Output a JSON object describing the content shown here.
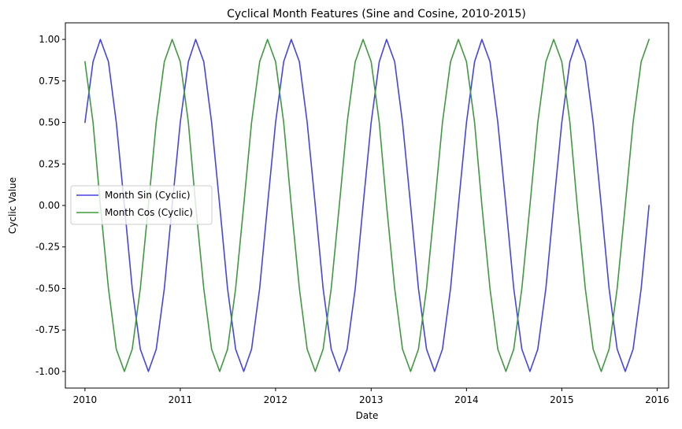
{
  "chart_data": {
    "type": "line",
    "title": "Cyclical Month Features (Sine and Cosine, 2010-2015)",
    "xlabel": "Date",
    "ylabel": "Cyclic Value",
    "x_ticks": [
      "2010",
      "2011",
      "2012",
      "2013",
      "2014",
      "2015",
      "2016"
    ],
    "y_ticks": [
      "1.00",
      "0.75",
      "0.50",
      "0.25",
      "0.00",
      "-0.25",
      "-0.50",
      "-0.75",
      "-1.00"
    ],
    "xlim": [
      "2009-10-18",
      "2016-02-14"
    ],
    "ylim": [
      -1.1,
      1.1
    ],
    "grid": false,
    "legend_position": "center-left",
    "x": [
      "2010-01",
      "2010-02",
      "2010-03",
      "2010-04",
      "2010-05",
      "2010-06",
      "2010-07",
      "2010-08",
      "2010-09",
      "2010-10",
      "2010-11",
      "2010-12",
      "2011-01",
      "2011-02",
      "2011-03",
      "2011-04",
      "2011-05",
      "2011-06",
      "2011-07",
      "2011-08",
      "2011-09",
      "2011-10",
      "2011-11",
      "2011-12",
      "2012-01",
      "2012-02",
      "2012-03",
      "2012-04",
      "2012-05",
      "2012-06",
      "2012-07",
      "2012-08",
      "2012-09",
      "2012-10",
      "2012-11",
      "2012-12",
      "2013-01",
      "2013-02",
      "2013-03",
      "2013-04",
      "2013-05",
      "2013-06",
      "2013-07",
      "2013-08",
      "2013-09",
      "2013-10",
      "2013-11",
      "2013-12",
      "2014-01",
      "2014-02",
      "2014-03",
      "2014-04",
      "2014-05",
      "2014-06",
      "2014-07",
      "2014-08",
      "2014-09",
      "2014-10",
      "2014-11",
      "2014-12",
      "2015-01",
      "2015-02",
      "2015-03",
      "2015-04",
      "2015-05",
      "2015-06",
      "2015-07",
      "2015-08",
      "2015-09",
      "2015-10",
      "2015-11",
      "2015-12"
    ],
    "series": [
      {
        "name": "Month Sin (Cyclic)",
        "color": "#4444e8",
        "values": [
          0.5,
          0.866,
          1.0,
          0.866,
          0.5,
          0.0,
          -0.5,
          -0.866,
          -1.0,
          -0.866,
          -0.5,
          0.0,
          0.5,
          0.866,
          1.0,
          0.866,
          0.5,
          0.0,
          -0.5,
          -0.866,
          -1.0,
          -0.866,
          -0.5,
          0.0,
          0.5,
          0.866,
          1.0,
          0.866,
          0.5,
          0.0,
          -0.5,
          -0.866,
          -1.0,
          -0.866,
          -0.5,
          0.0,
          0.5,
          0.866,
          1.0,
          0.866,
          0.5,
          0.0,
          -0.5,
          -0.866,
          -1.0,
          -0.866,
          -0.5,
          0.0,
          0.5,
          0.866,
          1.0,
          0.866,
          0.5,
          0.0,
          -0.5,
          -0.866,
          -1.0,
          -0.866,
          -0.5,
          0.0,
          0.5,
          0.866,
          1.0,
          0.866,
          0.5,
          0.0,
          -0.5,
          -0.866,
          -1.0,
          -0.866,
          -0.5,
          0.0
        ]
      },
      {
        "name": "Month Cos (Cyclic)",
        "color": "#3f9a3f",
        "values": [
          0.866,
          0.5,
          0.0,
          -0.5,
          -0.866,
          -1.0,
          -0.866,
          -0.5,
          0.0,
          0.5,
          0.866,
          1.0,
          0.866,
          0.5,
          0.0,
          -0.5,
          -0.866,
          -1.0,
          -0.866,
          -0.5,
          0.0,
          0.5,
          0.866,
          1.0,
          0.866,
          0.5,
          0.0,
          -0.5,
          -0.866,
          -1.0,
          -0.866,
          -0.5,
          0.0,
          0.5,
          0.866,
          1.0,
          0.866,
          0.5,
          0.0,
          -0.5,
          -0.866,
          -1.0,
          -0.866,
          -0.5,
          0.0,
          0.5,
          0.866,
          1.0,
          0.866,
          0.5,
          0.0,
          -0.5,
          -0.866,
          -1.0,
          -0.866,
          -0.5,
          0.0,
          0.5,
          0.866,
          1.0,
          0.866,
          0.5,
          0.0,
          -0.5,
          -0.866,
          -1.0,
          -0.866,
          -0.5,
          0.0,
          0.5,
          0.866,
          1.0
        ]
      }
    ]
  }
}
